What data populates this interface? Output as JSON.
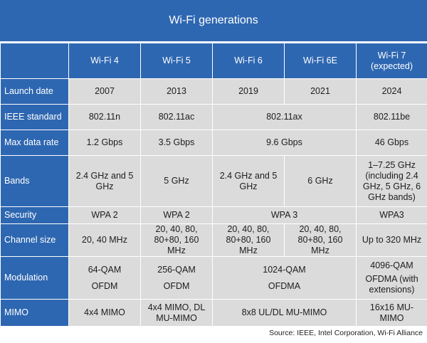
{
  "title": "Wi-Fi generations",
  "columns": [
    "Wi-Fi 4",
    "Wi-Fi 5",
    "Wi-Fi 6",
    "Wi-Fi 6E",
    "Wi-Fi 7 (expected)"
  ],
  "columns_line2": {
    "wifi7": "(expected)"
  },
  "rows": {
    "launch_date": {
      "label": "Launch date",
      "wifi4": "2007",
      "wifi5": "2013",
      "wifi6": "2019",
      "wifi6e": "2021",
      "wifi7": "2024"
    },
    "ieee_standard": {
      "label": "IEEE standard",
      "wifi4": "802.11n",
      "wifi5": "802.11ac",
      "wifi6_6e": "802.11ax",
      "wifi7": "802.11be"
    },
    "max_data_rate": {
      "label": "Max data rate",
      "wifi4": "1.2 Gbps",
      "wifi5": "3.5 Gbps",
      "wifi6_6e": "9.6 Gbps",
      "wifi7": "46 Gbps"
    },
    "bands": {
      "label": "Bands",
      "wifi4": "2.4 GHz and 5 GHz",
      "wifi5": "5 GHz",
      "wifi6": "2.4 GHz and 5 GHz",
      "wifi6e": "6 GHz",
      "wifi7": "1–7.25 GHz (including 2.4 GHz, 5 GHz, 6 GHz bands)"
    },
    "security": {
      "label": "Security",
      "wifi4": "WPA 2",
      "wifi5": "WPA 2",
      "wifi6_6e": "WPA 3",
      "wifi7": "WPA3"
    },
    "channel_size": {
      "label": "Channel size",
      "wifi4": "20, 40 MHz",
      "wifi5": "20, 40, 80, 80+80, 160 MHz",
      "wifi6": "20, 40, 80, 80+80, 160 MHz",
      "wifi6e": "20, 40, 80, 80+80, 160 MHz",
      "wifi7": "Up to 320 MHz"
    },
    "modulation": {
      "label": "Modulation",
      "wifi4_qam": "64-QAM",
      "wifi4_ofdm": "OFDM",
      "wifi5_qam": "256-QAM",
      "wifi5_ofdm": "OFDM",
      "wifi6_6e_qam": "1024-QAM",
      "wifi6_6e_ofdm": "OFDMA",
      "wifi7_qam": "4096-QAM",
      "wifi7_ofdm": "OFDMA (with extensions)"
    },
    "mimo": {
      "label": "MIMO",
      "wifi4": "4x4 MIMO",
      "wifi5": "4x4 MIMO, DL MU-MIMO",
      "wifi6_6e": "8x8 UL/DL MU-MIMO",
      "wifi7": "16x16 MU-MIMO"
    }
  },
  "source": "Source: IEEE, Intel Corporation, Wi-Fi Alliance",
  "colors": {
    "header_blue": "#2e67b1",
    "cell_gray": "#dbdbdb"
  }
}
